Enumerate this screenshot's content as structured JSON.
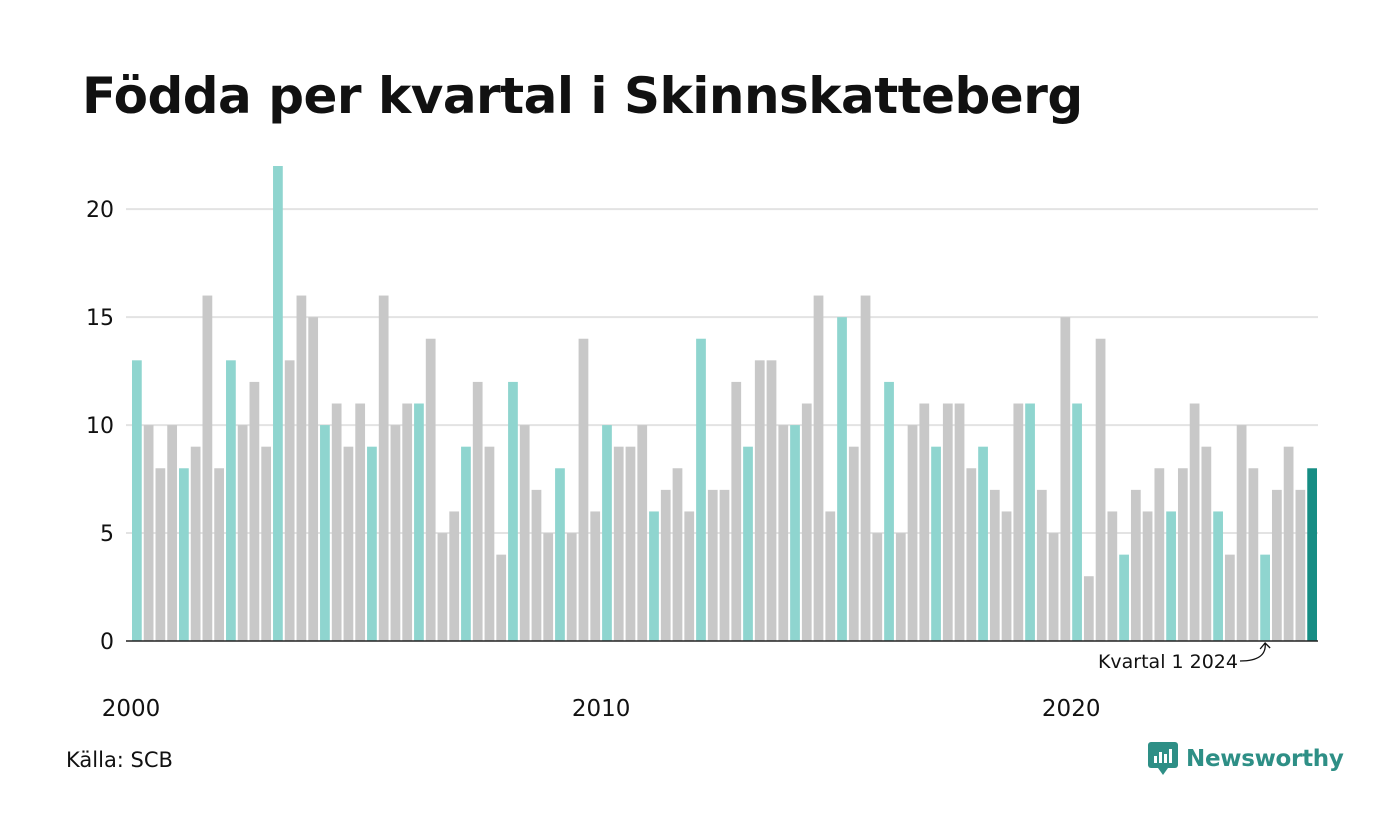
{
  "title": "Födda per kvartal i Skinnskatteberg",
  "source": "Källa: SCB",
  "brand": {
    "name": "Newsworthy",
    "icon": "newsworthy-logo-icon"
  },
  "colors": {
    "highlight": "#8fd5cf",
    "other": "#c8c8c8",
    "latest": "#168d84",
    "grid": "#e3e3e3",
    "axis": "#222222",
    "brand": "#2e8f86"
  },
  "chart_data": {
    "type": "bar",
    "title": "Födda per kvartal i Skinnskatteberg",
    "xlabel": "",
    "ylabel": "",
    "ylim": [
      0,
      22
    ],
    "yticks": [
      0,
      5,
      10,
      15,
      20
    ],
    "xticks": [
      "2000",
      "2010",
      "2020"
    ],
    "grid": true,
    "start": "2000 kvartal 1",
    "annotation": "Kvartal 1 2024",
    "highlight_rule": "Kvartal 1 highlighted; latest quarter dark",
    "values": [
      13,
      10,
      8,
      10,
      8,
      9,
      16,
      8,
      13,
      10,
      12,
      9,
      22,
      13,
      16,
      15,
      10,
      11,
      9,
      11,
      9,
      16,
      10,
      11,
      11,
      14,
      5,
      6,
      9,
      12,
      9,
      4,
      12,
      10,
      7,
      5,
      8,
      5,
      14,
      6,
      10,
      9,
      9,
      10,
      6,
      7,
      8,
      6,
      14,
      7,
      7,
      12,
      9,
      13,
      13,
      10,
      10,
      11,
      16,
      6,
      15,
      9,
      16,
      5,
      12,
      5,
      10,
      11,
      9,
      11,
      11,
      8,
      9,
      7,
      6,
      11,
      11,
      7,
      5,
      15,
      11,
      3,
      14,
      6,
      4,
      7,
      6,
      8,
      6,
      8,
      11,
      9,
      6,
      4,
      10,
      8,
      4,
      7,
      9,
      7,
      8
    ]
  }
}
